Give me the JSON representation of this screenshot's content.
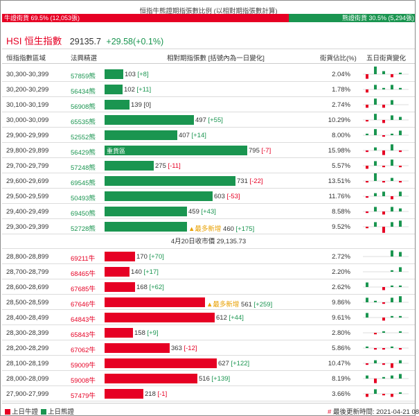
{
  "ratio": {
    "title": "恒指牛熊證期指張數比例 (以相對期指張數計算)",
    "bull_label": "牛證街貨 69.5% (12,053張)",
    "bull_pct": 69.5,
    "bear_label": "熊證街貨 30.5% (5,294張)",
    "bear_pct": 30.5
  },
  "index": {
    "name": "HSI 恒生指數",
    "price": "29135.7",
    "change": "+29.58(+0.1%)"
  },
  "headers": {
    "range": "恒指指數區域",
    "code": "法興精選",
    "contracts": "相對期指張數 [括號內為一日變化]",
    "pct": "街貨佔比(%)",
    "trend": "五日街貨變化"
  },
  "bear_rows": [
    {
      "range": "30,300-30,399",
      "code": "57859熊",
      "value": 103,
      "value_text": "103",
      "change": "[+8]",
      "change_sign": "pos",
      "pct": "2.04%",
      "spark": [
        -3,
        5,
        2,
        -2,
        1
      ]
    },
    {
      "range": "30,200-30,299",
      "code": "56434熊",
      "value": 102,
      "value_text": "102",
      "change": "[+11]",
      "change_sign": "pos",
      "pct": "1.78%",
      "spark": [
        -2,
        3,
        1,
        3,
        1
      ]
    },
    {
      "range": "30,100-30,199",
      "code": "56908熊",
      "value": 139,
      "value_text": "139",
      "change": "[0]",
      "change_sign": "zero",
      "pct": "2.74%",
      "spark": [
        -2,
        4,
        -2,
        3,
        0
      ]
    },
    {
      "range": "30,000-30,099",
      "code": "65535熊",
      "value": 497,
      "value_text": "497",
      "change": "[+55]",
      "change_sign": "pos",
      "pct": "10.29%",
      "spark": [
        -1,
        4,
        -2,
        3,
        2
      ]
    },
    {
      "range": "29,900-29,999",
      "code": "52552熊",
      "value": 407,
      "value_text": "407",
      "change": "[+14]",
      "change_sign": "pos",
      "pct": "8.00%",
      "spark": [
        1,
        4,
        -1,
        1,
        3
      ]
    },
    {
      "range": "29,800-29,899",
      "code": "56429熊",
      "value": 795,
      "value_text": "795",
      "change": "[-7]",
      "change_sign": "neg",
      "pct": "15.98%",
      "spark": [
        -1,
        2,
        -3,
        4,
        -1
      ],
      "tag": "重貨區"
    },
    {
      "range": "29,700-29,799",
      "code": "57248熊",
      "value": 275,
      "value_text": "275",
      "change": "[-11]",
      "change_sign": "neg",
      "pct": "5.57%",
      "spark": [
        -2,
        3,
        -1,
        4,
        -1
      ]
    },
    {
      "range": "29,600-29,699",
      "code": "69545熊",
      "value": 731,
      "value_text": "731",
      "change": "[-22]",
      "change_sign": "neg",
      "pct": "13.51%",
      "spark": [
        -1,
        5,
        -1,
        2,
        -1
      ]
    },
    {
      "range": "29,500-29,599",
      "code": "50493熊",
      "value": 603,
      "value_text": "603",
      "change": "[-53]",
      "change_sign": "neg",
      "pct": "11.76%",
      "spark": [
        -1,
        2,
        3,
        -2,
        3
      ]
    },
    {
      "range": "29,400-29,499",
      "code": "69450熊",
      "value": 459,
      "value_text": "459",
      "change": "[+43]",
      "change_sign": "pos",
      "pct": "8.58%",
      "spark": [
        -1,
        3,
        -2,
        3,
        2
      ]
    },
    {
      "range": "29,300-29,399",
      "code": "52728熊",
      "value": 460,
      "value_text": "460",
      "change": "[+175]",
      "change_sign": "pos",
      "pct": "9.52%",
      "spark": [
        -1,
        3,
        -4,
        3,
        4
      ],
      "marker": "▲最多新增"
    }
  ],
  "close_text": "4月20日收市價 29,135.73",
  "bull_rows": [
    {
      "range": "28,800-28,899",
      "code": "69211牛",
      "value": 170,
      "value_text": "170",
      "change": "[+70]",
      "change_sign": "pos",
      "pct": "2.72%",
      "spark": [
        0,
        0,
        0,
        4,
        3
      ]
    },
    {
      "range": "28,700-28,799",
      "code": "68465牛",
      "value": 140,
      "value_text": "140",
      "change": "[+17]",
      "change_sign": "pos",
      "pct": "2.20%",
      "spark": [
        0,
        0,
        0,
        1,
        3
      ]
    },
    {
      "range": "28,600-28,699",
      "code": "67685牛",
      "value": 168,
      "value_text": "168",
      "change": "[+62]",
      "change_sign": "pos",
      "pct": "2.62%",
      "spark": [
        3,
        0,
        -2,
        1,
        1
      ]
    },
    {
      "range": "28,500-28,599",
      "code": "67646牛",
      "value": 561,
      "value_text": "561",
      "change": "[+259]",
      "change_sign": "pos",
      "pct": "9.86%",
      "spark": [
        3,
        1,
        -1,
        3,
        4
      ],
      "marker": "▲最多新增"
    },
    {
      "range": "28,400-28,499",
      "code": "64843牛",
      "value": 612,
      "value_text": "612",
      "change": "[+44]",
      "change_sign": "pos",
      "pct": "9.61%",
      "spark": [
        3,
        0,
        -2,
        1,
        1
      ]
    },
    {
      "range": "28,300-28,399",
      "code": "65843牛",
      "value": 158,
      "value_text": "158",
      "change": "[+9]",
      "change_sign": "pos",
      "pct": "2.80%",
      "spark": [
        0,
        -1,
        1,
        0,
        1
      ]
    },
    {
      "range": "28,200-28,299",
      "code": "67062牛",
      "value": 363,
      "value_text": "363",
      "change": "[-12]",
      "change_sign": "neg",
      "pct": "5.86%",
      "spark": [
        1,
        -1,
        -1,
        1,
        -1
      ]
    },
    {
      "range": "28,100-28,199",
      "code": "59009牛",
      "value": 627,
      "value_text": "627",
      "change": "[+122]",
      "change_sign": "pos",
      "pct": "10.47%",
      "spark": [
        -1,
        2,
        -1,
        -3,
        2
      ]
    },
    {
      "range": "28,000-28,099",
      "code": "59008牛",
      "value": 516,
      "value_text": "516",
      "change": "[+139]",
      "change_sign": "pos",
      "pct": "8.19%",
      "spark": [
        2,
        -3,
        1,
        2,
        3
      ]
    },
    {
      "range": "27,900-27,999",
      "code": "57479牛",
      "value": 218,
      "value_text": "218",
      "change": "[-1]",
      "change_sign": "neg",
      "pct": "3.66%",
      "spark": [
        -2,
        3,
        -1,
        -2,
        1
      ]
    }
  ],
  "legend": {
    "bull": "上日牛證",
    "bear": "上日熊證",
    "bull_color": "#e60024",
    "bear_color": "#1a9550"
  },
  "update": {
    "prefix": "#",
    "text": "最後更新時間: 2021-04-21 08"
  },
  "colors": {
    "bull": "#e60024",
    "bear": "#1a9550",
    "accent_marker": "#e8a000"
  }
}
